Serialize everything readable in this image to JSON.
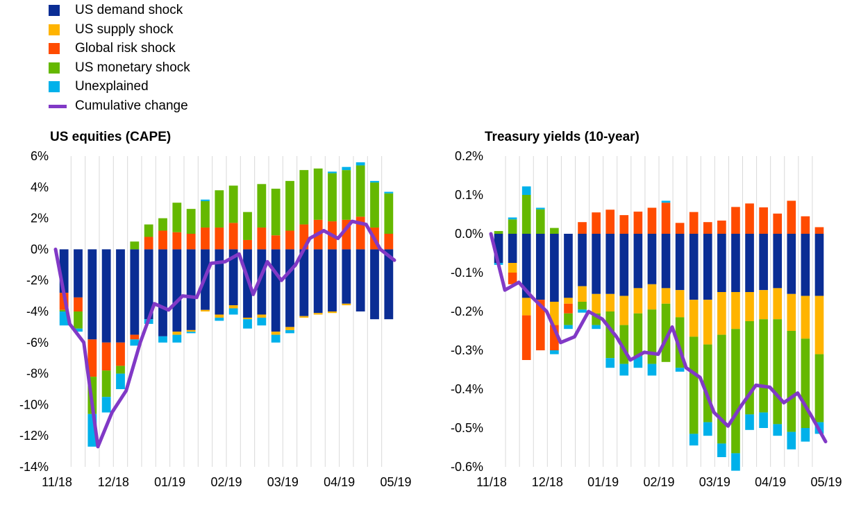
{
  "colors": {
    "us_demand": "#0a2d94",
    "us_supply": "#ffb400",
    "global_risk": "#ff4b00",
    "us_monetary": "#65b800",
    "unexplained": "#00b1ea",
    "cumulative": "#8139c6",
    "grid": "#d9d9d9"
  },
  "legend": [
    {
      "key": "us_demand",
      "label": "US demand shock",
      "kind": "box"
    },
    {
      "key": "us_supply",
      "label": "US supply shock",
      "kind": "box"
    },
    {
      "key": "global_risk",
      "label": "Global risk shock",
      "kind": "box"
    },
    {
      "key": "us_monetary",
      "label": "US monetary shock",
      "kind": "box"
    },
    {
      "key": "unexplained",
      "label": "Unexplained",
      "kind": "box"
    },
    {
      "key": "cumulative",
      "label": "Cumulative change",
      "kind": "line"
    }
  ],
  "chart_data": [
    {
      "type": "bar",
      "stacked": true,
      "title": "US equities (CAPE)",
      "ylim": [
        -14,
        6
      ],
      "yticks": [
        6,
        4,
        2,
        0,
        -2,
        -4,
        -6,
        -8,
        -10,
        -12,
        -14
      ],
      "ytick_labels": [
        "6%",
        "4%",
        "2%",
        "0%",
        "-2%",
        "-4%",
        "-6%",
        "-8%",
        "-10%",
        "-12%",
        "-14%"
      ],
      "xtick_labels": [
        "11/18",
        "12/18",
        "01/19",
        "02/19",
        "03/19",
        "04/19",
        "05/19"
      ],
      "grid": "vertical",
      "series": [
        {
          "name": "US demand shock",
          "key": "us_demand",
          "values": [
            -2.8,
            -3.1,
            -5.8,
            -6.0,
            -6.0,
            -5.5,
            -4.5,
            -5.6,
            -5.3,
            -5.2,
            -3.9,
            -4.2,
            -3.6,
            -4.4,
            -4.2,
            -5.3,
            -5.0,
            -4.3,
            -4.1,
            -4.0,
            -3.5,
            -4.0,
            -4.5,
            -4.5
          ]
        },
        {
          "name": "US supply shock",
          "key": "us_supply",
          "values": [
            0,
            0,
            0,
            0,
            0,
            0,
            0,
            0,
            -0.2,
            -0.1,
            -0.1,
            -0.2,
            -0.2,
            -0.1,
            -0.2,
            -0.2,
            -0.2,
            -0.1,
            -0.1,
            -0.1,
            -0.1,
            0,
            0,
            0
          ]
        },
        {
          "name": "Global risk shock",
          "key": "global_risk",
          "values": [
            -1.1,
            -0.9,
            -2.4,
            -1.8,
            -1.5,
            -0.3,
            0.8,
            1.2,
            1.1,
            1.0,
            1.4,
            1.4,
            1.7,
            0.6,
            1.4,
            0.9,
            1.2,
            1.6,
            1.9,
            1.8,
            1.9,
            2.1,
            1.4,
            1.0
          ]
        },
        {
          "name": "US monetary shock",
          "key": "us_monetary",
          "values": [
            -0.1,
            -1.1,
            -2.4,
            -1.7,
            -0.5,
            0.5,
            0.8,
            0.8,
            1.9,
            1.6,
            1.7,
            2.4,
            2.4,
            1.8,
            2.8,
            3.0,
            3.2,
            3.5,
            3.3,
            3.1,
            3.2,
            3.3,
            2.9,
            2.6
          ]
        },
        {
          "name": "Unexplained",
          "key": "unexplained",
          "values": [
            -0.9,
            -0.2,
            -2.1,
            -1.0,
            -1.0,
            -0.4,
            -0.3,
            -0.4,
            -0.5,
            -0.1,
            0.1,
            -0.2,
            -0.4,
            -0.6,
            -0.5,
            -0.5,
            -0.2,
            0,
            0,
            0.1,
            0.2,
            0.2,
            0.1,
            0.1
          ]
        }
      ],
      "line": {
        "name": "Cumulative change",
        "key": "cumulative",
        "values": [
          0,
          -4.8,
          -6.0,
          -12.7,
          -10.5,
          -9.1,
          -6.0,
          -3.5,
          -3.9,
          -3.0,
          -3.1,
          -0.9,
          -0.8,
          -0.3,
          -2.9,
          -0.8,
          -2.0,
          -1.0,
          0.7,
          1.2,
          0.7,
          1.8,
          1.6,
          0.0,
          -0.7
        ]
      }
    },
    {
      "type": "bar",
      "stacked": true,
      "title": "Treasury yields (10-year)",
      "ylim": [
        -0.6,
        0.2
      ],
      "yticks": [
        0.2,
        0.1,
        0.0,
        -0.1,
        -0.2,
        -0.3,
        -0.4,
        -0.5,
        -0.6
      ],
      "ytick_labels": [
        "0.2%",
        "0.1%",
        "0.0%",
        "-0.1%",
        "-0.2%",
        "-0.3%",
        "-0.4%",
        "-0.5%",
        "-0.6%"
      ],
      "xtick_labels": [
        "11/18",
        "12/18",
        "01/19",
        "02/19",
        "03/19",
        "04/19",
        "05/19"
      ],
      "grid": "vertical",
      "series": [
        {
          "name": "US demand shock",
          "key": "us_demand",
          "values": [
            -0.075,
            -0.075,
            -0.165,
            -0.17,
            -0.175,
            -0.165,
            -0.135,
            -0.155,
            -0.155,
            -0.16,
            -0.14,
            -0.13,
            -0.14,
            -0.145,
            -0.17,
            -0.17,
            -0.15,
            -0.15,
            -0.15,
            -0.145,
            -0.14,
            -0.155,
            -0.16,
            -0.16
          ]
        },
        {
          "name": "US supply shock",
          "key": "us_supply",
          "values": [
            0,
            -0.025,
            -0.045,
            0,
            -0.06,
            -0.015,
            -0.04,
            -0.05,
            -0.045,
            -0.075,
            -0.065,
            -0.065,
            -0.04,
            -0.07,
            -0.095,
            -0.115,
            -0.11,
            -0.095,
            -0.075,
            -0.075,
            -0.08,
            -0.095,
            -0.11,
            -0.15
          ]
        },
        {
          "name": "Global risk shock",
          "key": "global_risk",
          "values": [
            0,
            -0.03,
            -0.115,
            -0.13,
            -0.065,
            -0.025,
            0.03,
            0.055,
            0.062,
            0.048,
            0.057,
            0.067,
            0.08,
            0.028,
            0.056,
            0.03,
            0.034,
            0.069,
            0.078,
            0.068,
            0.052,
            0.085,
            0.045,
            0.017
          ]
        },
        {
          "name": "US monetary shock",
          "key": "us_monetary",
          "values": [
            0.007,
            0.037,
            0.1,
            0.063,
            0.015,
            -0.03,
            -0.02,
            -0.03,
            -0.12,
            -0.1,
            -0.11,
            -0.14,
            -0.15,
            -0.13,
            -0.25,
            -0.2,
            -0.28,
            -0.32,
            -0.24,
            -0.24,
            -0.27,
            -0.26,
            -0.23,
            -0.175
          ]
        },
        {
          "name": "Unexplained",
          "key": "unexplained",
          "values": [
            -0.005,
            0.005,
            0.022,
            0.004,
            -0.01,
            -0.01,
            -0.008,
            -0.01,
            -0.025,
            -0.03,
            -0.03,
            -0.03,
            0.005,
            -0.01,
            -0.03,
            -0.035,
            -0.035,
            -0.045,
            -0.04,
            -0.04,
            -0.03,
            -0.045,
            -0.035,
            -0.03
          ]
        }
      ],
      "line": {
        "name": "Cumulative change",
        "key": "cumulative",
        "values": [
          0,
          -0.145,
          -0.125,
          -0.165,
          -0.2,
          -0.28,
          -0.265,
          -0.2,
          -0.22,
          -0.265,
          -0.325,
          -0.305,
          -0.31,
          -0.24,
          -0.345,
          -0.37,
          -0.46,
          -0.495,
          -0.44,
          -0.39,
          -0.395,
          -0.435,
          -0.41,
          -0.47,
          -0.535
        ]
      }
    }
  ]
}
